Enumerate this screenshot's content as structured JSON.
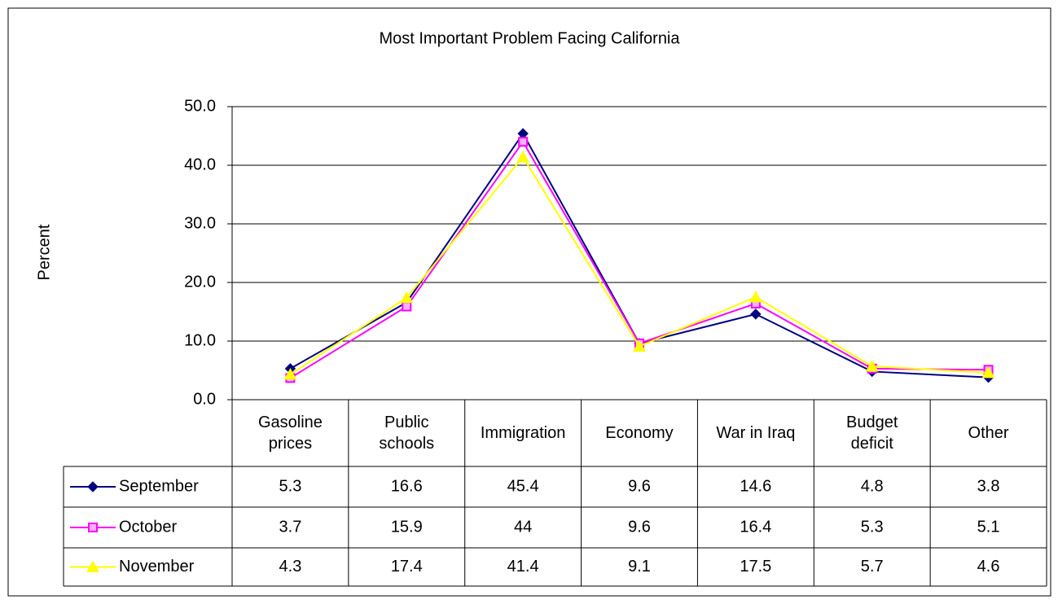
{
  "chart_data": {
    "type": "line",
    "title": "Most Important Problem Facing California",
    "y_label": "Percent",
    "categories": [
      "Gasoline prices",
      "Public schools",
      "Immigration",
      "Economy",
      "War in Iraq",
      "Budget deficit",
      "Other"
    ],
    "series": [
      {
        "name": "September",
        "color": "#000080",
        "marker": "diamond",
        "values": [
          5.3,
          16.6,
          45.4,
          9.6,
          14.6,
          4.8,
          3.8
        ]
      },
      {
        "name": "October",
        "color": "#ff00ff",
        "marker": "square",
        "values": [
          3.7,
          15.9,
          44,
          9.6,
          16.4,
          5.3,
          5.1
        ]
      },
      {
        "name": "November",
        "color": "#ffff00",
        "marker": "triangle",
        "values": [
          4.3,
          17.4,
          41.4,
          9.1,
          17.5,
          5.7,
          4.6
        ]
      }
    ],
    "ylim": [
      0,
      50
    ],
    "yticks": [
      {
        "value": 0,
        "label": "0.0"
      },
      {
        "value": 10,
        "label": "10.0"
      },
      {
        "value": 20,
        "label": "20.0"
      },
      {
        "value": 30,
        "label": "30.0"
      },
      {
        "value": 40,
        "label": "40.0"
      },
      {
        "value": 50,
        "label": "50.0"
      }
    ],
    "grid": true
  }
}
